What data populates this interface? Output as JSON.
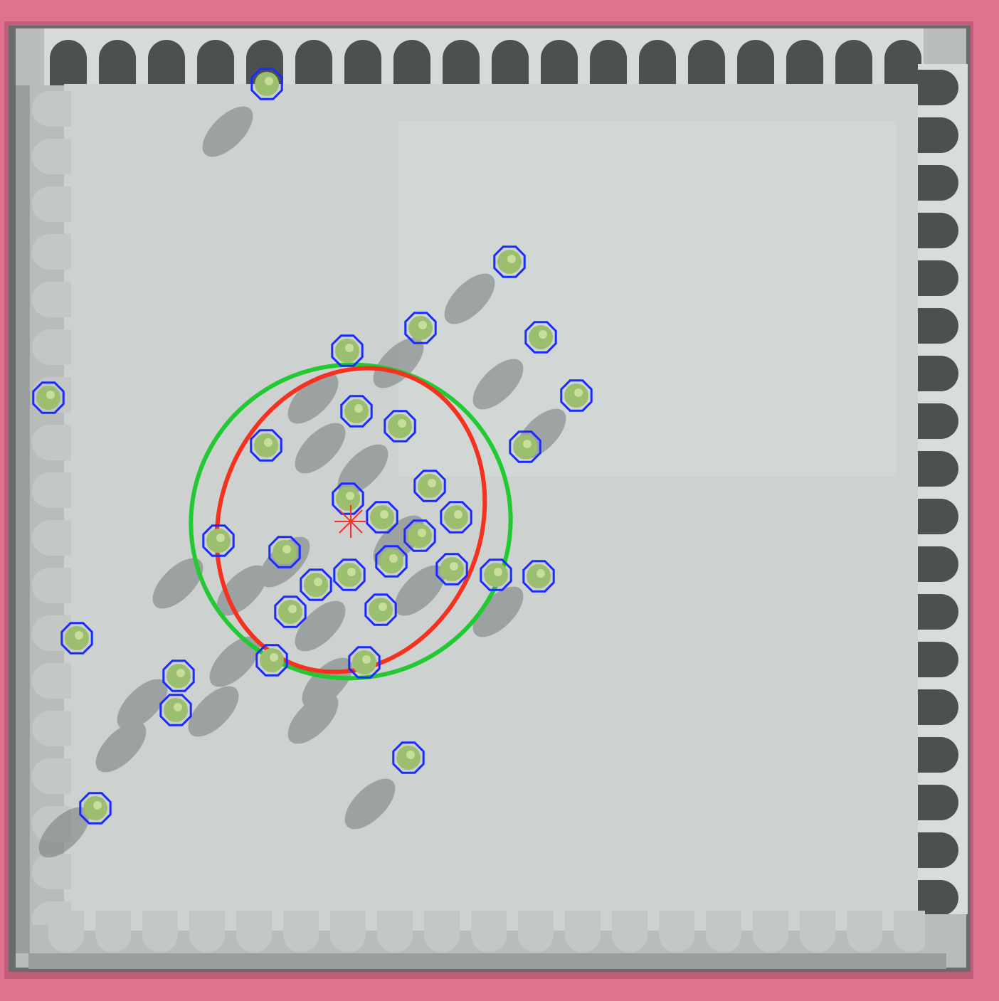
{
  "image": {
    "subject": "arena-tracking-frame"
  },
  "colors": {
    "frame": "#e0728f",
    "frame_dark": "#c85a78",
    "inner_wall": "#5f6060",
    "board": "#cdd2d0",
    "scallop_fill": "#c6cbc9",
    "shadow": "#6b706f",
    "marker_ring": "#1a2bff",
    "organism": "#9bbf6f",
    "ellipse_green": "#22c932",
    "ellipse_red": "#f5311f",
    "centroid": "#ff2a2a"
  },
  "overlays": {
    "marker_count": 35,
    "centroid": {
      "label": "group centroid"
    },
    "ellipses": [
      {
        "name": "outer-spread-ellipse",
        "color_key": "ellipse_green"
      },
      {
        "name": "inner-spread-ellipse",
        "color_key": "ellipse_red"
      }
    ]
  }
}
